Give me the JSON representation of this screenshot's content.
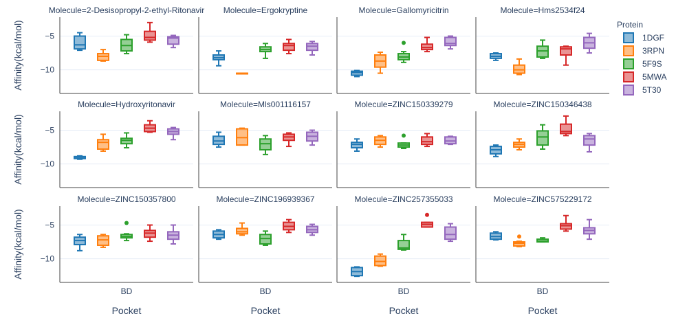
{
  "chart_data": {
    "type": "box",
    "x_axis_title": "Pocket",
    "y_axis_title": "Affinity(kcal/mol)",
    "x_category": "BD",
    "y_ticks": [
      -5,
      -10
    ],
    "y_tick_labels": [
      "−5",
      "−10"
    ],
    "ylim": [
      -13.5,
      -2.2
    ],
    "legend": {
      "title": "Protein",
      "position": "top-right",
      "entries": [
        "1DGF",
        "3RPN",
        "5F9S",
        "5MWA",
        "5T30"
      ]
    },
    "colors": {
      "1DGF": "#1f77b4",
      "3RPN": "#ff7f0e",
      "5F9S": "#2ca02c",
      "5MWA": "#d62728",
      "5T30": "#9467bd"
    },
    "panels": [
      {
        "title": "Molecule=2-Desisopropyl-2-ethyl-Ritonavir",
        "boxes": [
          {
            "protein": "1DGF",
            "whisker_low": -7.1,
            "q1": -6.9,
            "median": -6.3,
            "q3": -5.0,
            "whisker_high": -4.5,
            "outliers": []
          },
          {
            "protein": "3RPN",
            "whisker_low": -8.7,
            "q1": -8.6,
            "median": -8.0,
            "q3": -7.6,
            "whisker_high": -7.0,
            "outliers": []
          },
          {
            "protein": "5F9S",
            "whisker_low": -7.6,
            "q1": -7.2,
            "median": -6.4,
            "q3": -5.5,
            "whisker_high": -4.8,
            "outliers": []
          },
          {
            "protein": "5MWA",
            "whisker_low": -5.9,
            "q1": -5.6,
            "median": -5.2,
            "q3": -4.3,
            "whisker_high": -3.0,
            "outliers": []
          },
          {
            "protein": "5T30",
            "whisker_low": -6.7,
            "q1": -6.2,
            "median": -5.3,
            "q3": -5.1,
            "whisker_high": -4.9,
            "outliers": []
          }
        ]
      },
      {
        "title": "Molecule=Ergokryptine",
        "boxes": [
          {
            "protein": "1DGF",
            "whisker_low": -9.4,
            "q1": -8.5,
            "median": -8.2,
            "q3": -7.8,
            "whisker_high": -7.2,
            "outliers": []
          },
          {
            "protein": "3RPN",
            "whisker_low": -10.5,
            "q1": -10.5,
            "median": -10.5,
            "q3": -10.5,
            "whisker_high": -10.5,
            "outliers": []
          },
          {
            "protein": "5F9S",
            "whisker_low": -8.3,
            "q1": -7.3,
            "median": -7.0,
            "q3": -6.6,
            "whisker_high": -6.1,
            "outliers": []
          },
          {
            "protein": "5MWA",
            "whisker_low": -7.6,
            "q1": -7.1,
            "median": -6.4,
            "q3": -6.1,
            "whisker_high": -5.5,
            "outliers": []
          },
          {
            "protein": "5T30",
            "whisker_low": -7.8,
            "q1": -7.1,
            "median": -6.5,
            "q3": -6.1,
            "whisker_high": -5.8,
            "outliers": []
          }
        ]
      },
      {
        "title": "Molecule=Gallomyricitrin",
        "boxes": [
          {
            "protein": "1DGF",
            "whisker_low": -11.0,
            "q1": -10.8,
            "median": -10.4,
            "q3": -10.2,
            "whisker_high": -10.1,
            "outliers": []
          },
          {
            "protein": "3RPN",
            "whisker_low": -10.5,
            "q1": -9.6,
            "median": -8.7,
            "q3": -7.8,
            "whisker_high": -7.4,
            "outliers": []
          },
          {
            "protein": "5F9S",
            "whisker_low": -8.9,
            "q1": -8.5,
            "median": -8.1,
            "q3": -7.6,
            "whisker_high": -7.3,
            "outliers": [
              -6.0
            ]
          },
          {
            "protein": "5MWA",
            "whisker_low": -7.3,
            "q1": -7.0,
            "median": -6.7,
            "q3": -6.2,
            "whisker_high": -5.2,
            "outliers": []
          },
          {
            "protein": "5T30",
            "whisker_low": -6.9,
            "q1": -6.4,
            "median": -6.1,
            "q3": -5.2,
            "whisker_high": -5.0,
            "outliers": []
          }
        ]
      },
      {
        "title": "Molecule=Hms2534f24",
        "boxes": [
          {
            "protein": "1DGF",
            "whisker_low": -8.6,
            "q1": -8.3,
            "median": -8.0,
            "q3": -7.6,
            "whisker_high": -7.5,
            "outliers": []
          },
          {
            "protein": "3RPN",
            "whisker_low": -10.7,
            "q1": -10.5,
            "median": -10.0,
            "q3": -9.3,
            "whisker_high": -8.4,
            "outliers": []
          },
          {
            "protein": "5F9S",
            "whisker_low": -8.3,
            "q1": -8.1,
            "median": -7.2,
            "q3": -6.5,
            "whisker_high": -5.6,
            "outliers": []
          },
          {
            "protein": "5MWA",
            "whisker_low": -9.3,
            "q1": -7.8,
            "median": -6.9,
            "q3": -6.6,
            "whisker_high": -6.5,
            "outliers": []
          },
          {
            "protein": "5T30",
            "whisker_low": -7.5,
            "q1": -6.8,
            "median": -6.0,
            "q3": -5.2,
            "whisker_high": -4.6,
            "outliers": []
          }
        ]
      },
      {
        "title": "Molecule=Hydroxyritonavir",
        "boxes": [
          {
            "protein": "1DGF",
            "whisker_low": -9.3,
            "q1": -9.2,
            "median": -9.0,
            "q3": -8.9,
            "whisker_high": -8.8,
            "outliers": []
          },
          {
            "protein": "3RPN",
            "whisker_low": -8.1,
            "q1": -7.8,
            "median": -6.8,
            "q3": -6.4,
            "whisker_high": -5.6,
            "outliers": []
          },
          {
            "protein": "5F9S",
            "whisker_low": -7.6,
            "q1": -7.0,
            "median": -6.5,
            "q3": -6.2,
            "whisker_high": -5.4,
            "outliers": []
          },
          {
            "protein": "5MWA",
            "whisker_low": -5.3,
            "q1": -5.2,
            "median": -4.7,
            "q3": -4.2,
            "whisker_high": -3.6,
            "outliers": []
          },
          {
            "protein": "5T30",
            "whisker_low": -6.4,
            "q1": -5.6,
            "median": -5.2,
            "q3": -4.8,
            "whisker_high": -4.6,
            "outliers": []
          }
        ]
      },
      {
        "title": "Molecule=Mls001116157",
        "boxes": [
          {
            "protein": "1DGF",
            "whisker_low": -7.5,
            "q1": -7.1,
            "median": -6.6,
            "q3": -5.9,
            "whisker_high": -5.3,
            "outliers": []
          },
          {
            "protein": "3RPN",
            "whisker_low": -7.2,
            "q1": -7.2,
            "median": -6.1,
            "q3": -4.8,
            "whisker_high": -4.7,
            "outliers": []
          },
          {
            "protein": "5F9S",
            "whisker_low": -8.6,
            "q1": -7.9,
            "median": -7.0,
            "q3": -6.3,
            "whisker_high": -5.8,
            "outliers": []
          },
          {
            "protein": "5MWA",
            "whisker_low": -7.4,
            "q1": -6.5,
            "median": -6.0,
            "q3": -5.6,
            "whisker_high": -5.4,
            "outliers": []
          },
          {
            "protein": "5T30",
            "whisker_low": -7.2,
            "q1": -6.6,
            "median": -5.9,
            "q3": -5.3,
            "whisker_high": -5.0,
            "outliers": []
          }
        ]
      },
      {
        "title": "Molecule=ZINC150339279",
        "boxes": [
          {
            "protein": "1DGF",
            "whisker_low": -8.1,
            "q1": -7.6,
            "median": -7.1,
            "q3": -6.8,
            "whisker_high": -6.3,
            "outliers": []
          },
          {
            "protein": "3RPN",
            "whisker_low": -7.5,
            "q1": -7.1,
            "median": -6.5,
            "q3": -6.0,
            "whisker_high": -5.8,
            "outliers": []
          },
          {
            "protein": "5F9S",
            "whisker_low": -7.7,
            "q1": -7.5,
            "median": -7.2,
            "q3": -6.9,
            "whisker_high": -6.9,
            "outliers": [
              -5.8
            ]
          },
          {
            "protein": "5MWA",
            "whisker_low": -7.4,
            "q1": -7.1,
            "median": -6.7,
            "q3": -6.0,
            "whisker_high": -5.5,
            "outliers": []
          },
          {
            "protein": "5T30",
            "whisker_low": -7.1,
            "q1": -7.0,
            "median": -6.6,
            "q3": -6.0,
            "whisker_high": -5.9,
            "outliers": []
          }
        ]
      },
      {
        "title": "Molecule=ZINC150346438",
        "boxes": [
          {
            "protein": "1DGF",
            "whisker_low": -8.9,
            "q1": -8.5,
            "median": -7.9,
            "q3": -7.4,
            "whisker_high": -7.2,
            "outliers": []
          },
          {
            "protein": "3RPN",
            "whisker_low": -7.9,
            "q1": -7.5,
            "median": -7.1,
            "q3": -6.8,
            "whisker_high": -6.3,
            "outliers": []
          },
          {
            "protein": "5F9S",
            "whisker_low": -7.8,
            "q1": -7.2,
            "median": -6.0,
            "q3": -5.1,
            "whisker_high": -4.2,
            "outliers": []
          },
          {
            "protein": "5MWA",
            "whisker_low": -5.8,
            "q1": -5.5,
            "median": -5.2,
            "q3": -4.1,
            "whisker_high": -2.9,
            "outliers": []
          },
          {
            "protein": "5T30",
            "whisker_low": -8.2,
            "q1": -7.2,
            "median": -6.3,
            "q3": -5.8,
            "whisker_high": -5.5,
            "outliers": []
          }
        ]
      },
      {
        "title": "Molecule=ZINC150357800",
        "boxes": [
          {
            "protein": "1DGF",
            "whisker_low": -8.8,
            "q1": -7.9,
            "median": -7.3,
            "q3": -6.8,
            "whisker_high": -6.4,
            "outliers": []
          },
          {
            "protein": "3RPN",
            "whisker_low": -8.3,
            "q1": -8.0,
            "median": -7.2,
            "q3": -6.6,
            "whisker_high": -6.4,
            "outliers": []
          },
          {
            "protein": "5F9S",
            "whisker_low": -7.3,
            "q1": -6.9,
            "median": -6.7,
            "q3": -6.4,
            "whisker_high": -6.3,
            "outliers": [
              -4.7
            ]
          },
          {
            "protein": "5MWA",
            "whisker_low": -7.4,
            "q1": -6.8,
            "median": -6.2,
            "q3": -5.8,
            "whisker_high": -5.0,
            "outliers": []
          },
          {
            "protein": "5T30",
            "whisker_low": -7.8,
            "q1": -7.1,
            "median": -6.5,
            "q3": -6.0,
            "whisker_high": -5.0,
            "outliers": []
          }
        ]
      },
      {
        "title": "Molecule=ZINC196939367",
        "boxes": [
          {
            "protein": "1DGF",
            "whisker_low": -7.1,
            "q1": -6.9,
            "median": -6.4,
            "q3": -5.9,
            "whisker_high": -5.7,
            "outliers": []
          },
          {
            "protein": "3RPN",
            "whisker_low": -6.5,
            "q1": -6.3,
            "median": -6.0,
            "q3": -5.5,
            "whisker_high": -4.7,
            "outliers": []
          },
          {
            "protein": "5F9S",
            "whisker_low": -8.0,
            "q1": -7.8,
            "median": -7.0,
            "q3": -6.4,
            "whisker_high": -5.9,
            "outliers": []
          },
          {
            "protein": "5MWA",
            "whisker_low": -6.1,
            "q1": -5.7,
            "median": -5.2,
            "q3": -4.6,
            "whisker_high": -4.2,
            "outliers": []
          },
          {
            "protein": "5T30",
            "whisker_low": -6.5,
            "q1": -6.1,
            "median": -5.7,
            "q3": -5.2,
            "whisker_high": -4.9,
            "outliers": []
          }
        ]
      },
      {
        "title": "Molecule=ZINC257355033",
        "boxes": [
          {
            "protein": "1DGF",
            "whisker_low": -12.6,
            "q1": -12.5,
            "median": -11.9,
            "q3": -11.3,
            "whisker_high": -11.2,
            "outliers": []
          },
          {
            "protein": "3RPN",
            "whisker_low": -11.1,
            "q1": -11.0,
            "median": -10.4,
            "q3": -9.6,
            "whisker_high": -9.3,
            "outliers": []
          },
          {
            "protein": "5F9S",
            "whisker_low": -8.7,
            "q1": -8.6,
            "median": -8.4,
            "q3": -7.3,
            "whisker_high": -6.4,
            "outliers": []
          },
          {
            "protein": "5MWA",
            "whisker_low": -5.3,
            "q1": -5.3,
            "median": -4.9,
            "q3": -4.6,
            "whisker_high": -4.6,
            "outliers": [
              -3.5
            ]
          },
          {
            "protein": "5T30",
            "whisker_low": -7.4,
            "q1": -7.1,
            "median": -6.4,
            "q3": -5.3,
            "whisker_high": -4.8,
            "outliers": []
          }
        ]
      },
      {
        "title": "Molecule=ZINC575229172",
        "boxes": [
          {
            "protein": "1DGF",
            "whisker_low": -7.2,
            "q1": -7.1,
            "median": -6.7,
            "q3": -6.2,
            "whisker_high": -6.0,
            "outliers": []
          },
          {
            "protein": "3RPN",
            "whisker_low": -8.2,
            "q1": -8.1,
            "median": -7.7,
            "q3": -7.5,
            "whisker_high": -7.4,
            "outliers": [
              -6.7
            ]
          },
          {
            "protein": "5F9S",
            "whisker_low": -7.5,
            "q1": -7.5,
            "median": -7.4,
            "q3": -7.1,
            "whisker_high": -6.9,
            "outliers": []
          },
          {
            "protein": "5MWA",
            "whisker_low": -5.9,
            "q1": -5.6,
            "median": -5.1,
            "q3": -4.8,
            "whisker_high": -3.6,
            "outliers": []
          },
          {
            "protein": "5T30",
            "whisker_low": -7.1,
            "q1": -6.3,
            "median": -5.8,
            "q3": -5.4,
            "whisker_high": -4.2,
            "outliers": []
          }
        ]
      }
    ]
  }
}
